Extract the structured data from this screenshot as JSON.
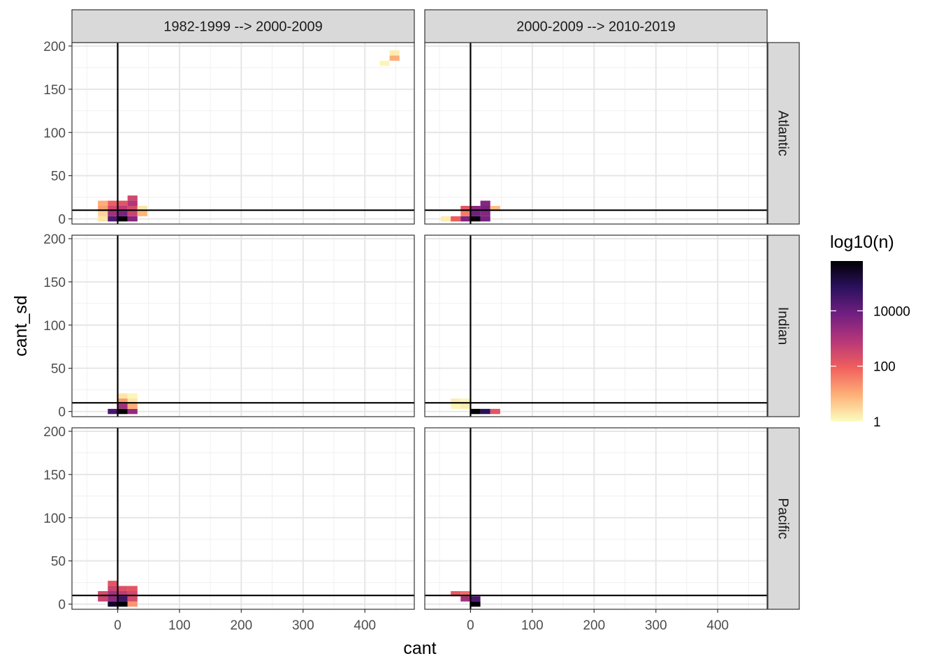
{
  "chart_data": {
    "type": "heatmap",
    "xlabel": "cant",
    "ylabel": "cant_sd",
    "x_ticks": [
      0,
      100,
      200,
      300,
      400
    ],
    "y_ticks": [
      0,
      50,
      100,
      150,
      200
    ],
    "xlim": [
      -74,
      480
    ],
    "ylim": [
      -6,
      204
    ],
    "bin_width_x": 16,
    "bin_height_y": 6,
    "reference_lines": {
      "vertical_x": 0,
      "horizontal_y": 10
    },
    "grid": true,
    "columns": [
      "1982-1999 --> 2000-2009",
      "2000-2009 --> 2010-2019"
    ],
    "rows": [
      "Atlantic",
      "Indian",
      "Pacific"
    ],
    "legend": {
      "title": "log10(n)",
      "placement": "right",
      "scale": "log10",
      "ticks": [
        {
          "value": 1,
          "label": "1"
        },
        {
          "value": 100,
          "label": "100"
        },
        {
          "value": 10000,
          "label": "10000"
        }
      ],
      "max_log10": 5.8,
      "colors": [
        "#fcfdbf",
        "#feb078",
        "#f1605d",
        "#b73779",
        "#721f81",
        "#2c115f",
        "#000004"
      ]
    },
    "panels": [
      {
        "row": "Atlantic",
        "column": "1982-1999 --> 2000-2009",
        "cells": [
          {
            "x": -24,
            "y": 0,
            "log10n": 0.3
          },
          {
            "x": -24,
            "y": 6,
            "log10n": 0.5
          },
          {
            "x": -24,
            "y": 12,
            "log10n": 1.2
          },
          {
            "x": -24,
            "y": 18,
            "log10n": 1.0
          },
          {
            "x": -8,
            "y": 0,
            "log10n": 4.3
          },
          {
            "x": -8,
            "y": 6,
            "log10n": 3.2
          },
          {
            "x": -8,
            "y": 12,
            "log10n": 2.5
          },
          {
            "x": -8,
            "y": 18,
            "log10n": 2.0
          },
          {
            "x": 8,
            "y": 0,
            "log10n": 5.8
          },
          {
            "x": 8,
            "y": 6,
            "log10n": 3.8
          },
          {
            "x": 8,
            "y": 12,
            "log10n": 2.8
          },
          {
            "x": 8,
            "y": 18,
            "log10n": 2.2
          },
          {
            "x": 24,
            "y": 0,
            "log10n": 3.6
          },
          {
            "x": 24,
            "y": 6,
            "log10n": 2.6
          },
          {
            "x": 24,
            "y": 12,
            "log10n": 2.4
          },
          {
            "x": 24,
            "y": 18,
            "log10n": 3.0
          },
          {
            "x": 24,
            "y": 24,
            "log10n": 2.5
          },
          {
            "x": 40,
            "y": 6,
            "log10n": 0.9
          },
          {
            "x": 40,
            "y": 12,
            "log10n": 0.3
          },
          {
            "x": 432,
            "y": 180,
            "log10n": 0.1
          },
          {
            "x": 448,
            "y": 186,
            "log10n": 1.0
          },
          {
            "x": 448,
            "y": 192,
            "log10n": 0.2
          }
        ]
      },
      {
        "row": "Atlantic",
        "column": "2000-2009 --> 2010-2019",
        "cells": [
          {
            "x": -40,
            "y": 0,
            "log10n": 0.2
          },
          {
            "x": -24,
            "y": 0,
            "log10n": 2.0
          },
          {
            "x": -8,
            "y": 0,
            "log10n": 3.7
          },
          {
            "x": -8,
            "y": 6,
            "log10n": 1.6
          },
          {
            "x": -8,
            "y": 12,
            "log10n": 2.2
          },
          {
            "x": 8,
            "y": 0,
            "log10n": 5.8
          },
          {
            "x": 8,
            "y": 6,
            "log10n": 3.9
          },
          {
            "x": 8,
            "y": 12,
            "log10n": 3.5
          },
          {
            "x": 24,
            "y": 0,
            "log10n": 3.8
          },
          {
            "x": 24,
            "y": 6,
            "log10n": 3.6
          },
          {
            "x": 24,
            "y": 12,
            "log10n": 3.8
          },
          {
            "x": 24,
            "y": 18,
            "log10n": 3.6
          },
          {
            "x": 40,
            "y": 12,
            "log10n": 0.8
          }
        ]
      },
      {
        "row": "Indian",
        "column": "1982-1999 --> 2000-2009",
        "cells": [
          {
            "x": -8,
            "y": 0,
            "log10n": 4.4
          },
          {
            "x": 8,
            "y": 0,
            "log10n": 5.8
          },
          {
            "x": 8,
            "y": 6,
            "log10n": 3.2
          },
          {
            "x": 8,
            "y": 12,
            "log10n": 1.2
          },
          {
            "x": 8,
            "y": 18,
            "log10n": 0.3
          },
          {
            "x": 24,
            "y": 0,
            "log10n": 3.4
          },
          {
            "x": 24,
            "y": 6,
            "log10n": 1.0
          },
          {
            "x": 24,
            "y": 12,
            "log10n": 0.3
          },
          {
            "x": 24,
            "y": 18,
            "log10n": 0.1
          }
        ]
      },
      {
        "row": "Indian",
        "column": "2000-2009 --> 2010-2019",
        "cells": [
          {
            "x": -24,
            "y": 6,
            "log10n": 0.1
          },
          {
            "x": -24,
            "y": 12,
            "log10n": 0.2
          },
          {
            "x": -8,
            "y": 6,
            "log10n": 0.2
          },
          {
            "x": -8,
            "y": 12,
            "log10n": 0.1
          },
          {
            "x": 8,
            "y": 0,
            "log10n": 5.8
          },
          {
            "x": 24,
            "y": 0,
            "log10n": 4.9
          },
          {
            "x": 40,
            "y": 0,
            "log10n": 2.2
          }
        ]
      },
      {
        "row": "Pacific",
        "column": "1982-1999 --> 2000-2009",
        "cells": [
          {
            "x": -24,
            "y": 6,
            "log10n": 2.6
          },
          {
            "x": -24,
            "y": 12,
            "log10n": 2.4
          },
          {
            "x": -8,
            "y": 0,
            "log10n": 5.4
          },
          {
            "x": -8,
            "y": 6,
            "log10n": 3.5
          },
          {
            "x": -8,
            "y": 12,
            "log10n": 3.2
          },
          {
            "x": -8,
            "y": 18,
            "log10n": 2.6
          },
          {
            "x": -8,
            "y": 24,
            "log10n": 2.2
          },
          {
            "x": 8,
            "y": 0,
            "log10n": 5.8
          },
          {
            "x": 8,
            "y": 6,
            "log10n": 4.6
          },
          {
            "x": 8,
            "y": 12,
            "log10n": 2.8
          },
          {
            "x": 8,
            "y": 18,
            "log10n": 2.3
          },
          {
            "x": 24,
            "y": 0,
            "log10n": 1.3
          },
          {
            "x": 24,
            "y": 6,
            "log10n": 2.4
          },
          {
            "x": 24,
            "y": 12,
            "log10n": 2.5
          },
          {
            "x": 24,
            "y": 18,
            "log10n": 2.2
          }
        ]
      },
      {
        "row": "Pacific",
        "column": "2000-2009 --> 2010-2019",
        "cells": [
          {
            "x": -24,
            "y": 12,
            "log10n": 2.1
          },
          {
            "x": -8,
            "y": 6,
            "log10n": 3.2
          },
          {
            "x": -8,
            "y": 12,
            "log10n": 1.8
          },
          {
            "x": 8,
            "y": 0,
            "log10n": 5.8
          },
          {
            "x": 8,
            "y": 6,
            "log10n": 4.4
          }
        ]
      }
    ]
  }
}
